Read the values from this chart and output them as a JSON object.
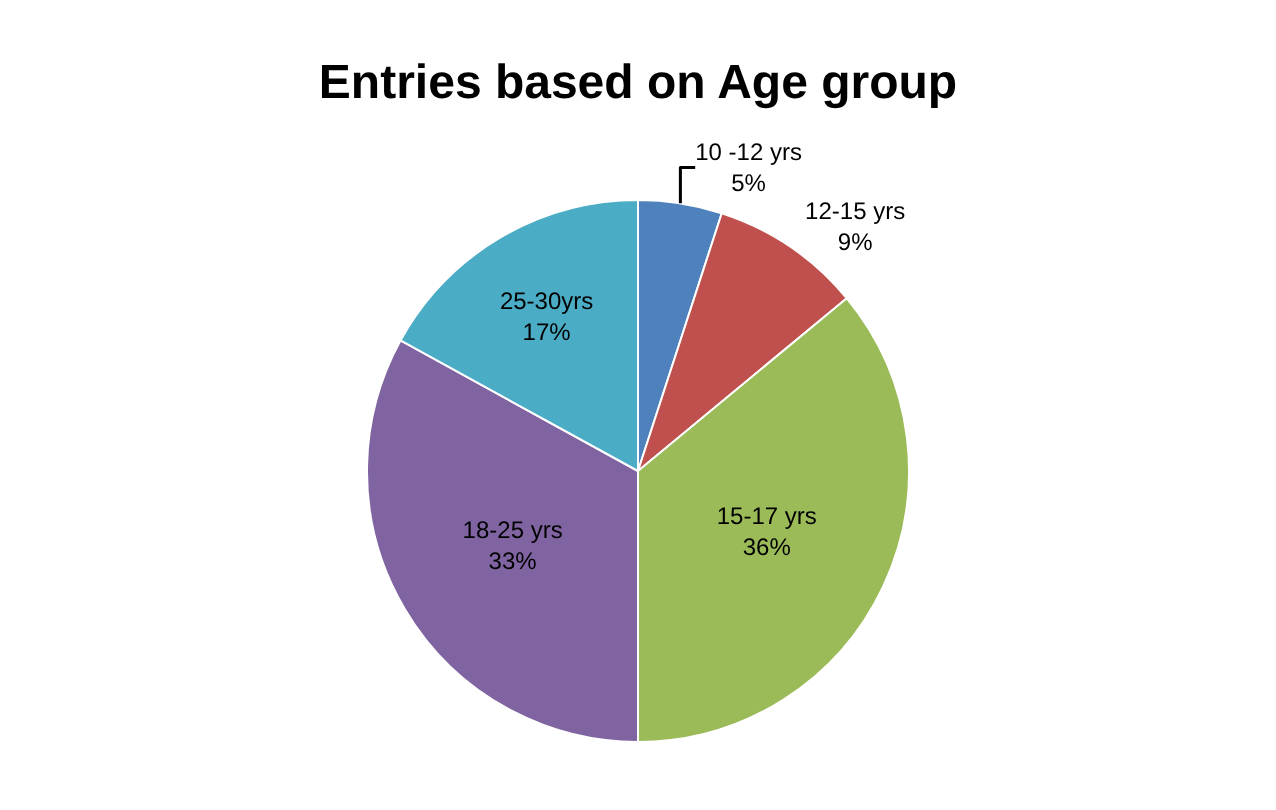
{
  "chart_data": {
    "type": "pie",
    "title": "Entries based on Age group",
    "categories": [
      "10 -12 yrs",
      "12-15 yrs",
      "15-17 yrs",
      "18-25 yrs",
      "25-30yrs"
    ],
    "values": [
      5,
      9,
      36,
      33,
      17
    ],
    "value_labels": [
      "5%",
      "9%",
      "36%",
      "33%",
      "17%"
    ],
    "colors": [
      "#4f81bd",
      "#c0504d",
      "#9bbb59",
      "#8064a2",
      "#4bacc6"
    ],
    "legend": false
  }
}
